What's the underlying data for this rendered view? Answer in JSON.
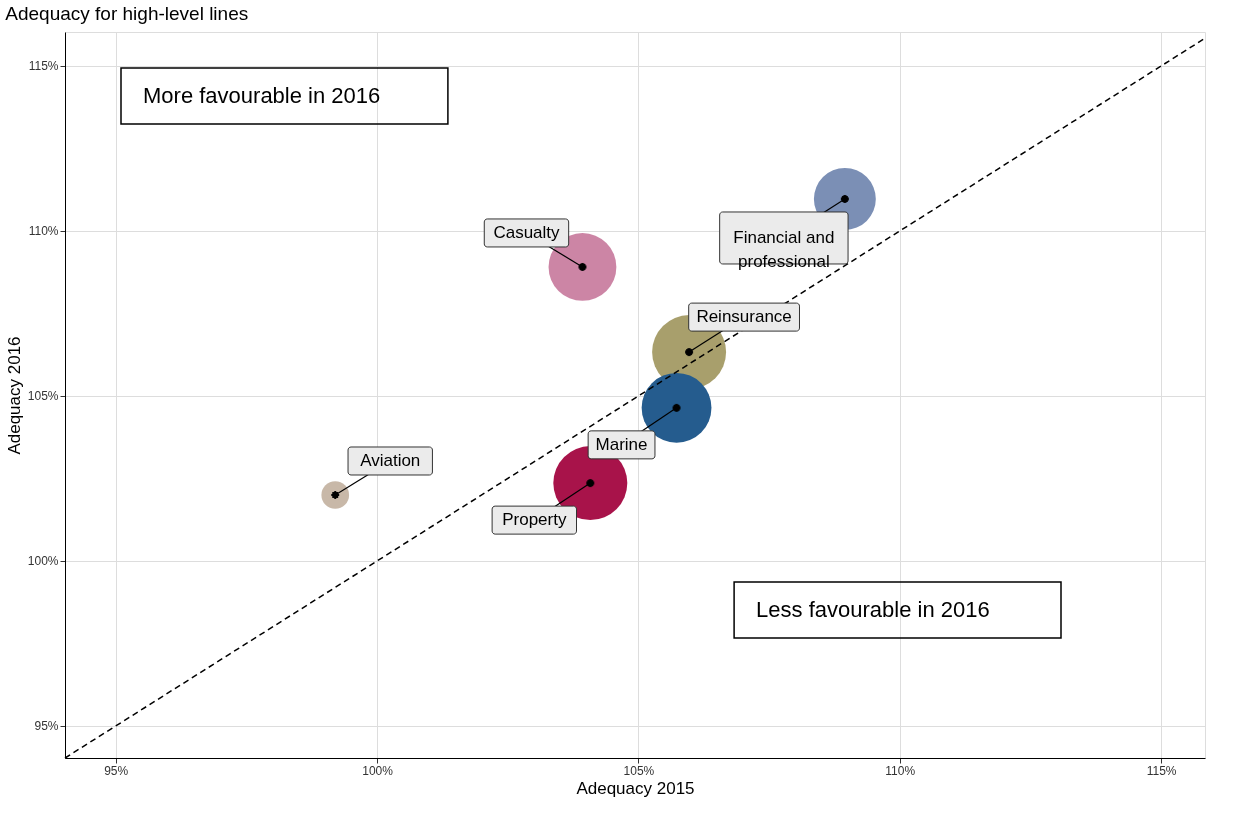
{
  "chart_data": {
    "type": "bubble",
    "title": "Adequacy for high-level lines",
    "xlabel": "Adequacy 2015",
    "ylabel": "Adequacy 2016",
    "xlim": [
      94.03,
      115.84
    ],
    "ylim": [
      94.03,
      116.03
    ],
    "xticks": [
      {
        "value": 95,
        "label": "95%"
      },
      {
        "value": 100,
        "label": "100%"
      },
      {
        "value": 105,
        "label": "105%"
      },
      {
        "value": 110,
        "label": "110%"
      },
      {
        "value": 115,
        "label": "115%"
      }
    ],
    "yticks": [
      {
        "value": 95,
        "label": "95%"
      },
      {
        "value": 100,
        "label": "100%"
      },
      {
        "value": 105,
        "label": "105%"
      },
      {
        "value": 110,
        "label": "110%"
      },
      {
        "value": 115,
        "label": "115%"
      }
    ],
    "grid": true,
    "series": [
      {
        "name": "Aviation",
        "color": "#c8b8a8",
        "x": [
          99.2
        ],
        "values": [
          102.0
        ],
        "sizes": [
          0.14
        ]
      },
      {
        "name": "Casualty",
        "color": "#cc85a5",
        "x": [
          103.93
        ],
        "values": [
          108.91
        ],
        "sizes": [
          0.84
        ]
      },
      {
        "name": "Financial and professional",
        "color": "#7b8fb5",
        "x": [
          108.95
        ],
        "values": [
          110.97
        ],
        "sizes": [
          0.7
        ]
      },
      {
        "name": "Reinsurance",
        "color": "#a89f6c",
        "x": [
          105.97
        ],
        "values": [
          106.33
        ],
        "sizes": [
          1
        ]
      },
      {
        "name": "Marine",
        "color": "#255c8e",
        "x": [
          105.73
        ],
        "values": [
          104.64
        ],
        "sizes": [
          0.89
        ]
      },
      {
        "name": "Property",
        "color": "#a8134a",
        "x": [
          104.08
        ],
        "values": [
          102.36
        ],
        "sizes": [
          1
        ]
      },
      {
        "type": "line",
        "color": "#000000",
        "x": [
          94.03,
          115.84
        ],
        "values": [
          94.03,
          115.84
        ],
        "line_style": "dashed"
      }
    ],
    "annotations": [
      "More favourable in 2016",
      "Less favourable in 2016"
    ]
  }
}
